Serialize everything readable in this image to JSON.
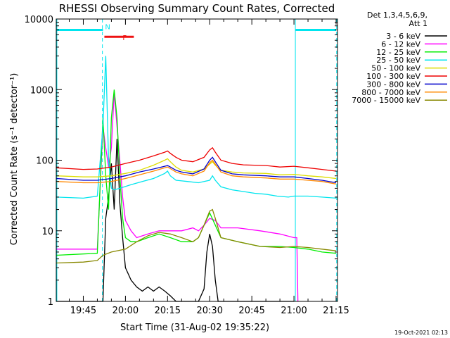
{
  "chart_data": {
    "type": "line",
    "title": "RHESSI Observing Summary Count Rates, Corrected",
    "xlabel": "Start Time (31-Aug-02 19:35:22)",
    "ylabel": "Corrected Count Rate (s⁻¹ detector⁻¹)",
    "yscale": "log",
    "ylim": [
      1,
      10000
    ],
    "xlim_min": [
      35.37,
      135.5
    ],
    "x_units": "minutes after 19:00 UT",
    "x_ticks": [
      {
        "t": 45,
        "label": "19:45"
      },
      {
        "t": 60,
        "label": "20:00"
      },
      {
        "t": 75,
        "label": "20:15"
      },
      {
        "t": 90,
        "label": "20:30"
      },
      {
        "t": 105,
        "label": "20:45"
      },
      {
        "t": 120,
        "label": "21:00"
      },
      {
        "t": 135,
        "label": "21:15"
      }
    ],
    "y_ticks": [
      {
        "v": 1,
        "label": "1"
      },
      {
        "v": 10,
        "label": "10"
      },
      {
        "v": 100,
        "label": "100"
      },
      {
        "v": 1000,
        "label": "1000"
      },
      {
        "v": 10000,
        "label": "10000"
      }
    ],
    "legend_header": [
      "Det 1,3,4,5,6,9,",
      "Att 1"
    ],
    "legend_position": "right",
    "timestamp": "19-Oct-2021 02:13",
    "flags": [
      {
        "label": "N",
        "color": "#00e5ee",
        "bars": [
          [
            35.4,
            52
          ],
          [
            120.5,
            135
          ]
        ],
        "y": 7000
      },
      {
        "label": "F",
        "color": "#ee1111",
        "bars": [
          [
            52.5,
            63
          ]
        ],
        "y": 5600
      }
    ],
    "markers": {
      "color": "#00e5ee",
      "solid": [
        35.6,
        120.5
      ],
      "dashed": [
        51.8,
        135.2
      ]
    },
    "series": [
      {
        "name": "3 - 6 keV",
        "color": "#000000",
        "points": [
          [
            35.4,
            1
          ],
          [
            52,
            1
          ],
          [
            53,
            15
          ],
          [
            54,
            30
          ],
          [
            55,
            90
          ],
          [
            56,
            20
          ],
          [
            57,
            200
          ],
          [
            58,
            25
          ],
          [
            59,
            8
          ],
          [
            60,
            3
          ],
          [
            62,
            2
          ],
          [
            64,
            1.6
          ],
          [
            66,
            1.4
          ],
          [
            68,
            1.6
          ],
          [
            70,
            1.4
          ],
          [
            72,
            1.6
          ],
          [
            74,
            1.4
          ],
          [
            76,
            1.2
          ],
          [
            78,
            1
          ],
          [
            80,
            1
          ],
          [
            86,
            1
          ],
          [
            88,
            1.5
          ],
          [
            89,
            5
          ],
          [
            90,
            9
          ],
          [
            91,
            6
          ],
          [
            92,
            2
          ],
          [
            93,
            1
          ],
          [
            120,
            1
          ]
        ]
      },
      {
        "name": "6 - 12 keV",
        "color": "#ff00ff",
        "points": [
          [
            35.4,
            5.5
          ],
          [
            50,
            5.5
          ],
          [
            52,
            300
          ],
          [
            53,
            150
          ],
          [
            54,
            80
          ],
          [
            55,
            150
          ],
          [
            56,
            900
          ],
          [
            57,
            300
          ],
          [
            58,
            100
          ],
          [
            59,
            30
          ],
          [
            60,
            14
          ],
          [
            62,
            10
          ],
          [
            64,
            8
          ],
          [
            68,
            9
          ],
          [
            72,
            10
          ],
          [
            76,
            10
          ],
          [
            80,
            10
          ],
          [
            84,
            11
          ],
          [
            86,
            10
          ],
          [
            88,
            12
          ],
          [
            90,
            15
          ],
          [
            92,
            14
          ],
          [
            94,
            11
          ],
          [
            100,
            11
          ],
          [
            108,
            10
          ],
          [
            115,
            9
          ],
          [
            120,
            8
          ],
          [
            121,
            8
          ],
          [
            121.4,
            1
          ]
        ]
      },
      {
        "name": "12 - 25 keV",
        "color": "#00ee00",
        "points": [
          [
            35.4,
            4.5
          ],
          [
            50,
            4.8
          ],
          [
            52,
            400
          ],
          [
            53,
            60
          ],
          [
            54,
            20
          ],
          [
            55,
            400
          ],
          [
            56,
            1000
          ],
          [
            57,
            400
          ],
          [
            58,
            60
          ],
          [
            59,
            15
          ],
          [
            60,
            8
          ],
          [
            62,
            7
          ],
          [
            64,
            7
          ],
          [
            68,
            8
          ],
          [
            72,
            9
          ],
          [
            76,
            8
          ],
          [
            80,
            7
          ],
          [
            84,
            7
          ],
          [
            86,
            8
          ],
          [
            88,
            12
          ],
          [
            90,
            18
          ],
          [
            92,
            12
          ],
          [
            94,
            8
          ],
          [
            100,
            7
          ],
          [
            108,
            6
          ],
          [
            115,
            6
          ],
          [
            120,
            5.8
          ],
          [
            125,
            5.5
          ],
          [
            130,
            5
          ],
          [
            135,
            4.8
          ]
        ]
      },
      {
        "name": "25 - 50 keV",
        "color": "#00e5ee",
        "points": [
          [
            35.4,
            30
          ],
          [
            45,
            29
          ],
          [
            50,
            31
          ],
          [
            52,
            300
          ],
          [
            53,
            3000
          ],
          [
            54,
            100
          ],
          [
            55,
            40
          ],
          [
            56,
            38
          ],
          [
            58,
            40
          ],
          [
            62,
            45
          ],
          [
            66,
            50
          ],
          [
            70,
            55
          ],
          [
            74,
            65
          ],
          [
            75,
            70
          ],
          [
            76,
            60
          ],
          [
            78,
            52
          ],
          [
            82,
            50
          ],
          [
            86,
            48
          ],
          [
            88,
            50
          ],
          [
            90,
            52
          ],
          [
            91,
            60
          ],
          [
            92,
            52
          ],
          [
            94,
            42
          ],
          [
            98,
            38
          ],
          [
            102,
            36
          ],
          [
            106,
            34
          ],
          [
            110,
            33
          ],
          [
            114,
            31
          ],
          [
            118,
            30
          ],
          [
            120,
            31
          ],
          [
            125,
            31
          ],
          [
            130,
            30
          ],
          [
            135,
            29
          ]
        ]
      },
      {
        "name": "50 - 100 keV",
        "color": "#dddd00",
        "points": [
          [
            35.4,
            60
          ],
          [
            45,
            58
          ],
          [
            50,
            58
          ],
          [
            55,
            60
          ],
          [
            60,
            65
          ],
          [
            65,
            72
          ],
          [
            70,
            85
          ],
          [
            74,
            100
          ],
          [
            75,
            105
          ],
          [
            76,
            95
          ],
          [
            78,
            80
          ],
          [
            80,
            72
          ],
          [
            84,
            68
          ],
          [
            88,
            75
          ],
          [
            90,
            88
          ],
          [
            91,
            95
          ],
          [
            92,
            85
          ],
          [
            94,
            72
          ],
          [
            98,
            68
          ],
          [
            102,
            66
          ],
          [
            110,
            65
          ],
          [
            115,
            62
          ],
          [
            120,
            63
          ],
          [
            125,
            60
          ],
          [
            130,
            58
          ],
          [
            135,
            55
          ]
        ]
      },
      {
        "name": "100 - 300 keV",
        "color": "#ee0000",
        "points": [
          [
            35.4,
            78
          ],
          [
            45,
            74
          ],
          [
            50,
            75
          ],
          [
            55,
            80
          ],
          [
            60,
            90
          ],
          [
            65,
            100
          ],
          [
            70,
            115
          ],
          [
            74,
            130
          ],
          [
            75,
            135
          ],
          [
            76,
            125
          ],
          [
            78,
            110
          ],
          [
            80,
            100
          ],
          [
            84,
            95
          ],
          [
            88,
            110
          ],
          [
            90,
            140
          ],
          [
            91,
            150
          ],
          [
            92,
            130
          ],
          [
            94,
            100
          ],
          [
            98,
            90
          ],
          [
            102,
            86
          ],
          [
            110,
            84
          ],
          [
            115,
            80
          ],
          [
            120,
            82
          ],
          [
            125,
            78
          ],
          [
            130,
            74
          ],
          [
            135,
            70
          ]
        ]
      },
      {
        "name": "300 - 800 keV",
        "color": "#0000cc",
        "points": [
          [
            35.4,
            55
          ],
          [
            45,
            52
          ],
          [
            50,
            52
          ],
          [
            55,
            55
          ],
          [
            60,
            60
          ],
          [
            65,
            68
          ],
          [
            70,
            75
          ],
          [
            74,
            82
          ],
          [
            75,
            84
          ],
          [
            76,
            80
          ],
          [
            78,
            72
          ],
          [
            80,
            68
          ],
          [
            84,
            64
          ],
          [
            88,
            75
          ],
          [
            90,
            100
          ],
          [
            91,
            110
          ],
          [
            92,
            95
          ],
          [
            94,
            72
          ],
          [
            98,
            64
          ],
          [
            102,
            62
          ],
          [
            110,
            60
          ],
          [
            115,
            58
          ],
          [
            120,
            58
          ],
          [
            125,
            55
          ],
          [
            130,
            52
          ],
          [
            135,
            48
          ]
        ]
      },
      {
        "name": "800 - 7000 keV",
        "color": "#ff8800",
        "points": [
          [
            35.4,
            50
          ],
          [
            45,
            48
          ],
          [
            50,
            48
          ],
          [
            55,
            50
          ],
          [
            60,
            55
          ],
          [
            65,
            62
          ],
          [
            70,
            70
          ],
          [
            74,
            78
          ],
          [
            75,
            80
          ],
          [
            76,
            76
          ],
          [
            78,
            68
          ],
          [
            80,
            64
          ],
          [
            84,
            60
          ],
          [
            88,
            70
          ],
          [
            90,
            92
          ],
          [
            91,
            100
          ],
          [
            92,
            88
          ],
          [
            94,
            68
          ],
          [
            98,
            60
          ],
          [
            102,
            58
          ],
          [
            110,
            56
          ],
          [
            115,
            54
          ],
          [
            120,
            54
          ],
          [
            125,
            52
          ],
          [
            130,
            50
          ],
          [
            135,
            46
          ]
        ]
      },
      {
        "name": "7000 - 15000 keV",
        "color": "#888800",
        "points": [
          [
            35.4,
            3.5
          ],
          [
            45,
            3.6
          ],
          [
            50,
            3.8
          ],
          [
            52,
            4.5
          ],
          [
            55,
            5
          ],
          [
            60,
            5.5
          ],
          [
            64,
            7
          ],
          [
            68,
            8.5
          ],
          [
            72,
            9.5
          ],
          [
            76,
            9
          ],
          [
            80,
            8
          ],
          [
            84,
            7
          ],
          [
            86,
            8
          ],
          [
            88,
            12
          ],
          [
            90,
            19
          ],
          [
            91,
            20
          ],
          [
            92,
            15
          ],
          [
            94,
            8
          ],
          [
            100,
            7
          ],
          [
            108,
            6
          ],
          [
            115,
            5.8
          ],
          [
            120,
            6
          ],
          [
            125,
            5.8
          ],
          [
            130,
            5.5
          ],
          [
            135,
            5.2
          ]
        ]
      }
    ]
  }
}
